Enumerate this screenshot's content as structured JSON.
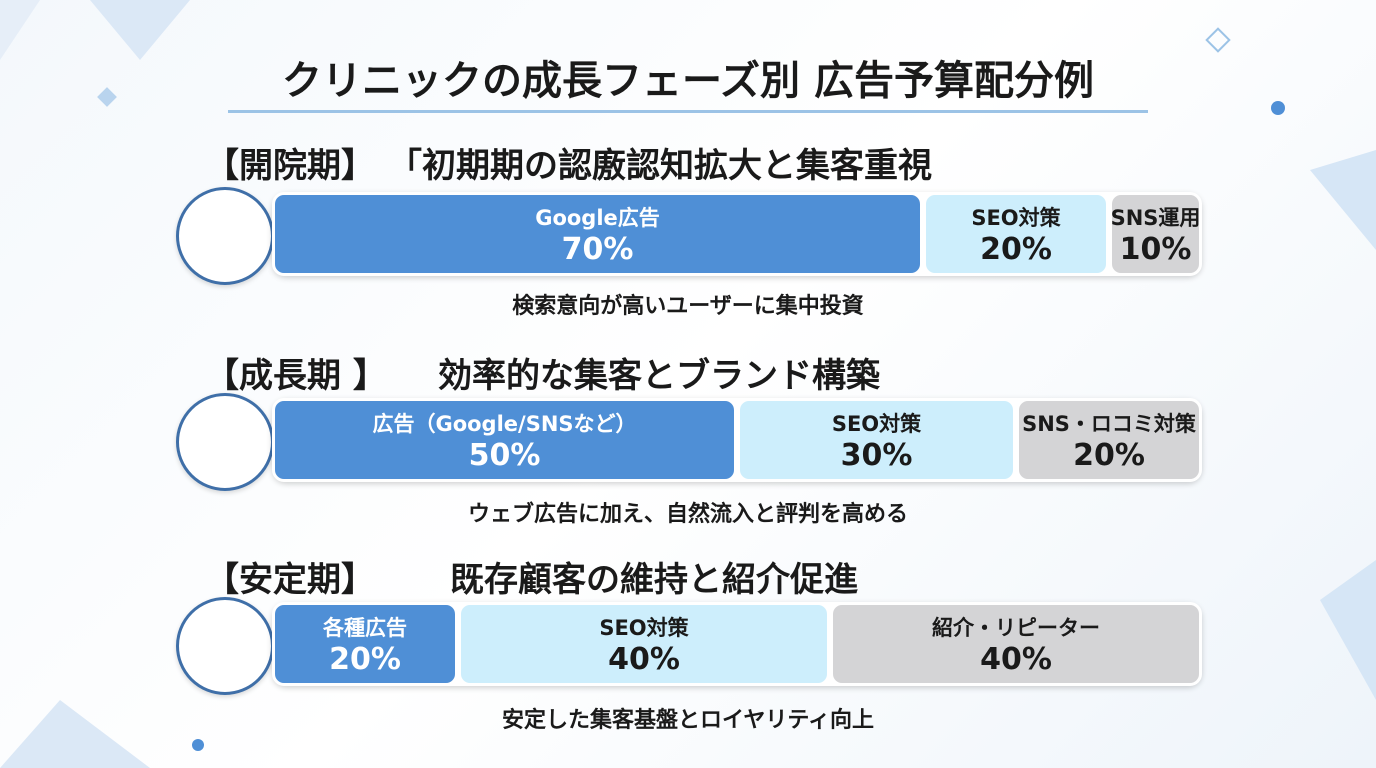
{
  "title": "クリニックの成長フェーズ別 広告予算配分例",
  "phases": [
    {
      "label": "【開院期】",
      "heading": "「初期期の認廒認知拡大と集客重視",
      "segments": [
        {
          "name": "Google広告",
          "value": 70,
          "value_label": "70%",
          "color": "#4f8fd6"
        },
        {
          "name": "SEO対策",
          "value": 20,
          "value_label": "20%",
          "color": "#cdeefc"
        },
        {
          "name": "SNS運用",
          "value": 10,
          "value_label": "10%",
          "color": "#d4d4d6"
        }
      ],
      "caption": "検索意向が高いユーザーに集中投資"
    },
    {
      "label": "【成長期 】",
      "heading": "効率的な集客とブランド構築",
      "segments": [
        {
          "name": "広告（Google/SNSなど）",
          "value": 50,
          "value_label": "50%",
          "color": "#4f8fd6"
        },
        {
          "name": "SEO対策",
          "value": 30,
          "value_label": "30%",
          "color": "#cdeefc"
        },
        {
          "name": "SNS・ロコミ対策",
          "value": 20,
          "value_label": "20%",
          "color": "#d4d4d6"
        }
      ],
      "caption": "ウェブ広告に加え、自然流入と評判を高める"
    },
    {
      "label": "【安定期】",
      "heading": "既存顧客の維持と紹介促進",
      "segments": [
        {
          "name": "各種広告",
          "value": 20,
          "value_label": "20%",
          "color": "#4f8fd6"
        },
        {
          "name": "SEO対策",
          "value": 40,
          "value_label": "40%",
          "color": "#cdeefc"
        },
        {
          "name": "紹介・リピーター",
          "value": 40,
          "value_label": "40%",
          "color": "#d4d4d6"
        }
      ],
      "caption": "安定した集客基盤とロイヤリティ向上"
    }
  ]
}
